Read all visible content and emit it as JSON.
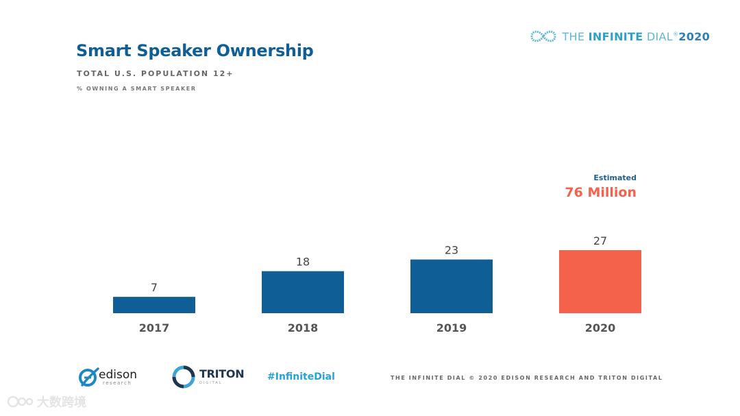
{
  "brand": {
    "word1": "THE ",
    "word2": "INFINITE",
    "word3": " DIAL",
    "reg": "®",
    "year": "2020"
  },
  "title": "Smart Speaker Ownership",
  "subtitle": "TOTAL U.S. POPULATION 12+",
  "subsubtitle": "% OWNING A SMART SPEAKER",
  "chart_data": {
    "type": "bar",
    "categories": [
      "2017",
      "2018",
      "2019",
      "2020"
    ],
    "values": [
      7,
      18,
      23,
      27
    ],
    "title": "Smart Speaker Ownership",
    "subtitle": "TOTAL U.S. POPULATION 12+",
    "ylabel": "% OWNING A SMART SPEAKER",
    "xlabel": "",
    "ylim": [
      0,
      27
    ],
    "grid": false,
    "bar_colors": [
      "#0f5f96",
      "#0f5f96",
      "#0f5f96",
      "#f4624b"
    ],
    "annotation": {
      "category": "2020",
      "line1": "Estimated",
      "line2": "76 Million"
    }
  },
  "colors": {
    "primary": "#0f5f96",
    "highlight": "#f4624b",
    "accent": "#27a3d6"
  },
  "footer": {
    "edison_name": "edison",
    "edison_sub": "research",
    "triton_name": "TRITON",
    "triton_sub": "DIGITAL",
    "hashtag": "#InfiniteDial",
    "credit": "THE INFINITE DIAL   © 2020 EDISON RESEARCH AND TRITON DIGITAL"
  },
  "watermark": {
    "text": "大数跨境"
  }
}
